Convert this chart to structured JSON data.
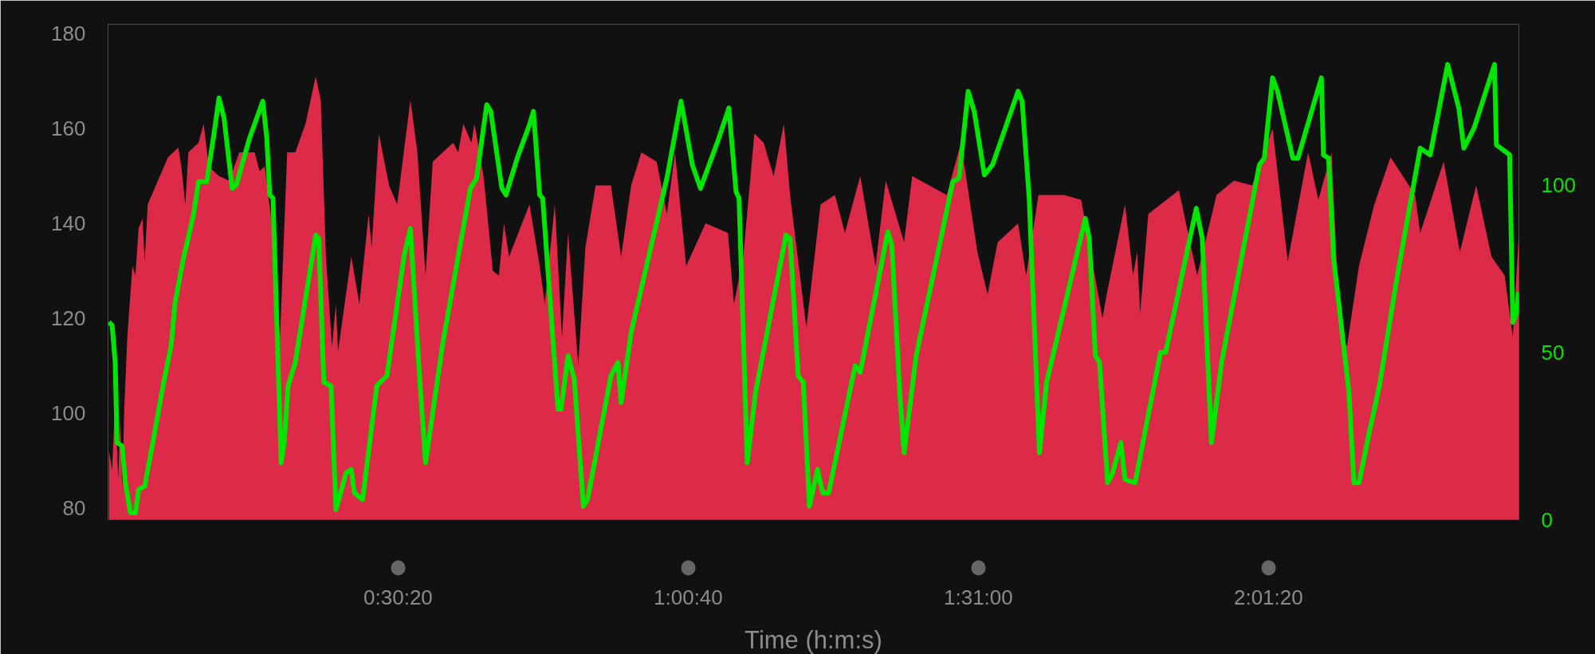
{
  "chart_data": {
    "type": "area",
    "xlabel": "Time (h:m:s)",
    "xlim": [
      0,
      8851
    ],
    "xticks": [
      {
        "value": 1820,
        "label": "0:30:20"
      },
      {
        "value": 3640,
        "label": "1:00:40"
      },
      {
        "value": 5460,
        "label": "1:31:00"
      },
      {
        "value": 7280,
        "label": "2:01:20"
      }
    ],
    "ylim": [
      77.5,
      182
    ],
    "yticks": [
      80,
      100,
      120,
      140,
      160,
      180
    ],
    "y2lim": [
      0,
      148
    ],
    "y2ticks": [
      0,
      50,
      100
    ],
    "series": [
      {
        "color": "#dc2a48",
        "x": [
          6,
          26,
          45,
          64,
          77,
          89,
          102,
          121,
          153,
          172,
          192,
          217,
          230,
          249,
          313,
          377,
          441,
          460,
          485,
          504,
          568,
          600,
          632,
          696,
          760,
          824,
          920,
          951,
          983,
          1035,
          1079,
          1124,
          1175,
          1239,
          1303,
          1335,
          1367,
          1405,
          1430,
          1443,
          1526,
          1577,
          1635,
          1654,
          1699,
          1763,
          1814,
          1897,
          1941,
          1992,
          2037,
          2165,
          2197,
          2229,
          2280,
          2299,
          2356,
          2414,
          2452,
          2484,
          2516,
          2644,
          2708,
          2740,
          2803,
          2848,
          2886,
          2950,
          2995,
          3059,
          3155,
          3219,
          3282,
          3346,
          3442,
          3506,
          3557,
          3627,
          3749,
          3889,
          3927,
          3985,
          4055,
          4113,
          4176,
          4240,
          4279,
          4381,
          4470,
          4560,
          4623,
          4719,
          4815,
          4879,
          4994,
          5045,
          5262,
          5351,
          5454,
          5518,
          5581,
          5709,
          5760,
          5837,
          5997,
          6105,
          6201,
          6239,
          6265,
          6380,
          6431,
          6456,
          6475,
          6526,
          6718,
          6833,
          6954,
          7063,
          7178,
          7306,
          7401,
          7529,
          7593,
          7676,
          7727,
          7772,
          7848,
          7944,
          8046,
          8200,
          8232,
          8379,
          8481,
          8583,
          8679,
          8762,
          8813,
          8851
        ],
        "values": [
          92,
          88,
          103,
          86,
          99,
          84,
          101,
          116,
          131,
          129,
          139,
          141,
          132,
          144,
          149,
          154,
          156,
          152,
          144,
          155,
          157,
          161,
          152,
          150,
          149,
          155,
          155,
          151,
          152,
          138,
          116,
          155,
          155,
          161,
          171,
          166,
          133,
          114,
          123,
          113,
          133,
          123,
          142,
          135,
          159,
          148,
          144,
          166,
          155,
          129,
          153,
          157,
          155,
          161,
          157,
          161,
          150,
          130,
          129,
          140,
          133,
          144,
          131,
          123,
          144,
          116,
          138,
          110,
          135,
          148,
          148,
          133,
          148,
          155,
          153,
          142,
          155,
          131,
          140,
          138,
          123,
          133,
          159,
          157,
          150,
          161,
          146,
          118,
          144,
          146,
          138,
          150,
          131,
          149,
          136,
          150,
          146,
          157,
          134,
          125,
          136,
          140,
          129,
          146,
          146,
          145,
          127,
          120,
          125,
          144,
          129,
          134,
          121,
          142,
          147,
          129,
          146,
          149,
          148,
          160,
          132,
          155,
          145,
          155,
          118,
          114,
          131,
          144,
          154,
          146,
          138,
          153,
          134,
          148,
          133,
          129,
          116,
          138
        ]
      },
      {
        "type": "line",
        "axis": "y2",
        "color": "#00e600",
        "x": [
          6,
          26,
          45,
          57,
          89,
          109,
          140,
          172,
          192,
          230,
          281,
          345,
          396,
          421,
          473,
          536,
          568,
          619,
          664,
          696,
          728,
          779,
          805,
          888,
          971,
          996,
          1015,
          1035,
          1086,
          1105,
          1130,
          1175,
          1303,
          1322,
          1354,
          1399,
          1430,
          1494,
          1526,
          1545,
          1597,
          1686,
          1750,
          1858,
          1897,
          1954,
          1992,
          2101,
          2273,
          2312,
          2376,
          2401,
          2471,
          2497,
          2567,
          2644,
          2669,
          2708,
          2727,
          2823,
          2842,
          2886,
          2925,
          2982,
          3008,
          3155,
          3199,
          3219,
          3282,
          3506,
          3595,
          3666,
          3717,
          3832,
          3895,
          3940,
          3959,
          4010,
          4062,
          4253,
          4279,
          4330,
          4362,
          4400,
          4451,
          4483,
          4521,
          4687,
          4719,
          4892,
          4917,
          4968,
          4994,
          5070,
          5300,
          5339,
          5396,
          5434,
          5498,
          5549,
          5709,
          5735,
          5779,
          5843,
          5888,
          6131,
          6156,
          6194,
          6220,
          6271,
          6303,
          6354,
          6380,
          6443,
          6603,
          6635,
          6827,
          6865,
          6922,
          6986,
          7223,
          7254,
          7306,
          7337,
          7433,
          7465,
          7612,
          7625,
          7657,
          7689,
          7785,
          7816,
          7848,
          7912,
          7976,
          8085,
          8232,
          8295,
          8404,
          8474,
          8506,
          8570,
          8698,
          8710,
          8793,
          8813,
          8832,
          8851
        ],
        "values": [
          59,
          58,
          47,
          23,
          22,
          11,
          2,
          2,
          9,
          10,
          23,
          40,
          52,
          65,
          78,
          91,
          101,
          101,
          115,
          126,
          120,
          99,
          100,
          114,
          125,
          114,
          97,
          96,
          17,
          23,
          40,
          47,
          85,
          84,
          41,
          40,
          3,
          14,
          15,
          8,
          6,
          40,
          43,
          79,
          87,
          43,
          17,
          53,
          99,
          102,
          124,
          122,
          99,
          97,
          108,
          118,
          122,
          97,
          96,
          33,
          33,
          49,
          42,
          4,
          6,
          43,
          47,
          35,
          56,
          102,
          125,
          106,
          99,
          114,
          123,
          98,
          96,
          17,
          38,
          85,
          84,
          43,
          41,
          4,
          15,
          8,
          8,
          46,
          44,
          86,
          82,
          37,
          20,
          49,
          101,
          102,
          128,
          122,
          103,
          106,
          128,
          125,
          96,
          20,
          41,
          90,
          84,
          49,
          47,
          11,
          14,
          23,
          12,
          11,
          50,
          50,
          93,
          84,
          23,
          47,
          106,
          108,
          132,
          128,
          108,
          108,
          132,
          109,
          108,
          78,
          38,
          11,
          11,
          26,
          40,
          72,
          111,
          109,
          136,
          123,
          111,
          117,
          136,
          112,
          109,
          59,
          61,
          68
        ]
      }
    ]
  }
}
